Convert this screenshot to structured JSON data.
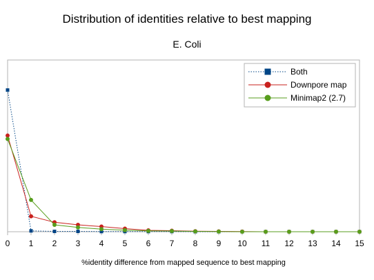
{
  "chart_data": {
    "type": "line",
    "title": "Distribution of identities relative to best mapping",
    "subtitle": "E. Coli",
    "xlabel": "%identity difference from mapped sequence to best mapping",
    "ylabel": "",
    "x": [
      0,
      1,
      2,
      3,
      4,
      5,
      6,
      7,
      8,
      9,
      10,
      11,
      12,
      13,
      14,
      15
    ],
    "ylim": [
      0,
      1
    ],
    "grid": false,
    "legend_position": "top-right",
    "series": [
      {
        "name": "Both",
        "color": "#004586",
        "line_style": "dotted",
        "values": [
          0.825,
          0.005,
          0.002,
          0.002,
          0.001,
          0.001,
          0.001,
          0.001,
          0.0,
          0.0,
          0.0,
          0.0,
          0.0,
          0.0,
          0.0,
          0.0
        ]
      },
      {
        "name": "Downpore map",
        "color": "#c9211e",
        "line_style": "solid",
        "values": [
          0.56,
          0.09,
          0.055,
          0.04,
          0.03,
          0.018,
          0.008,
          0.006,
          0.003,
          0.002,
          0.001,
          0.0,
          0.0,
          0.0,
          0.0,
          0.0
        ]
      },
      {
        "name": "Minimap2 (2.7)",
        "color": "#579d1c",
        "line_style": "solid",
        "values": [
          0.54,
          0.185,
          0.04,
          0.025,
          0.015,
          0.009,
          0.005,
          0.004,
          0.002,
          0.001,
          0.0,
          0.0,
          0.0,
          0.0,
          0.0,
          0.0
        ]
      }
    ]
  }
}
